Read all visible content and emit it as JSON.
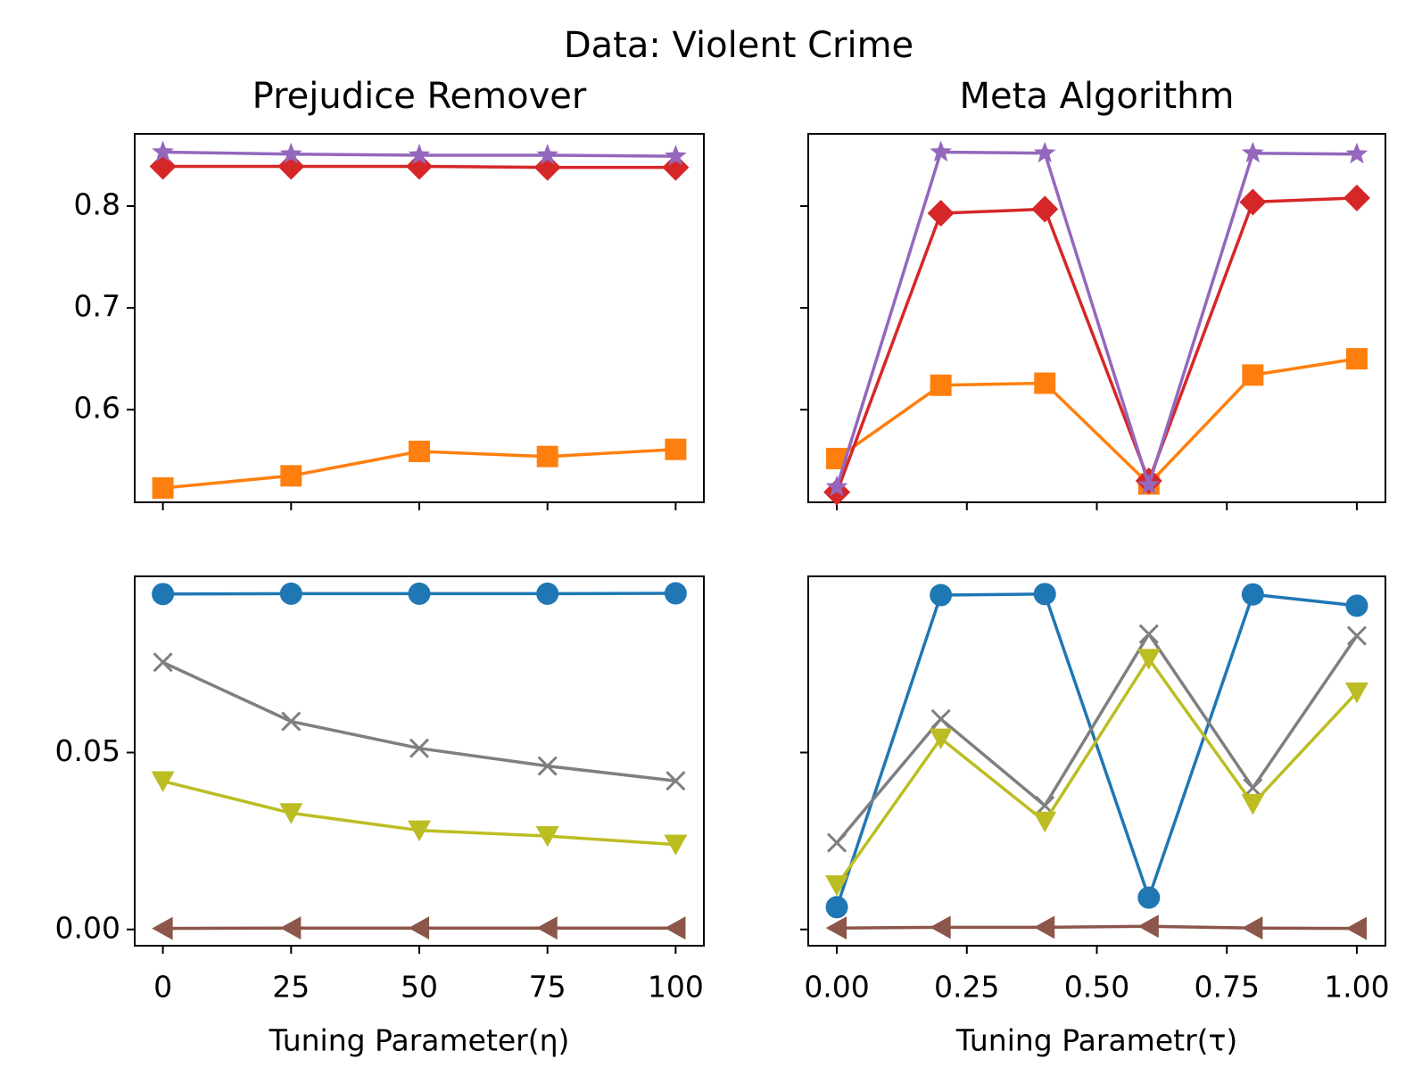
{
  "figure_title": "Data: Violent Crime",
  "chart_data": [
    {
      "id": "pr_top",
      "type": "line",
      "title": "Prejudice Remover",
      "xlabel": "",
      "ylabel": "",
      "x": [
        0,
        25,
        50,
        75,
        100
      ],
      "xlim": [
        -5.5,
        105.5
      ],
      "ylim": [
        0.509,
        0.871
      ],
      "xticks": [
        0,
        25,
        50,
        75,
        100
      ],
      "xticklabels": [],
      "yticks": [
        0.6,
        0.7,
        0.8
      ],
      "yticklabels": [
        "0.6",
        "0.7",
        "0.8"
      ],
      "grid": false,
      "series": [
        {
          "color": "#ff7f0e",
          "marker": "square",
          "values": [
            0.523,
            0.535,
            0.559,
            0.554,
            0.561
          ]
        },
        {
          "color": "#d62728",
          "marker": "diamond",
          "values": [
            0.839,
            0.839,
            0.839,
            0.838,
            0.838
          ]
        },
        {
          "color": "#9467bd",
          "marker": "star",
          "values": [
            0.853,
            0.851,
            0.85,
            0.85,
            0.849
          ]
        }
      ]
    },
    {
      "id": "meta_top",
      "type": "line",
      "title": "Meta Algorithm",
      "xlabel": "",
      "ylabel": "",
      "x": [
        0,
        0.2,
        0.4,
        0.6,
        0.8,
        1.0
      ],
      "xlim": [
        -0.055,
        1.055
      ],
      "ylim": [
        0.509,
        0.871
      ],
      "xticks": [
        0,
        0.25,
        0.5,
        0.75,
        1.0
      ],
      "xticklabels": [],
      "yticks": [
        0.6,
        0.7,
        0.8
      ],
      "yticklabels": [],
      "grid": false,
      "series": [
        {
          "color": "#ff7f0e",
          "marker": "square",
          "values": [
            0.552,
            0.624,
            0.626,
            0.527,
            0.634,
            0.65
          ]
        },
        {
          "color": "#d62728",
          "marker": "diamond",
          "values": [
            0.519,
            0.793,
            0.797,
            0.53,
            0.804,
            0.808
          ]
        },
        {
          "color": "#9467bd",
          "marker": "star",
          "values": [
            0.524,
            0.853,
            0.852,
            0.526,
            0.852,
            0.851
          ]
        }
      ]
    },
    {
      "id": "pr_bottom",
      "type": "line",
      "title": "",
      "xlabel": "Tuning Parameter(η)",
      "ylabel": "",
      "x": [
        0,
        25,
        50,
        75,
        100
      ],
      "xlim": [
        -5.5,
        105.5
      ],
      "ylim": [
        -0.0046,
        0.0998
      ],
      "xticks": [
        0,
        25,
        50,
        75,
        100
      ],
      "xticklabels": [
        "0",
        "25",
        "50",
        "75",
        "100"
      ],
      "yticks": [
        0.0,
        0.05
      ],
      "yticklabels": [
        "0.00",
        "0.05"
      ],
      "grid": false,
      "series": [
        {
          "color": "#1f77b4",
          "marker": "circle",
          "values": [
            0.0948,
            0.0949,
            0.0949,
            0.0949,
            0.095
          ]
        },
        {
          "color": "#7f7f7f",
          "marker": "x",
          "values": [
            0.0755,
            0.0588,
            0.0512,
            0.0462,
            0.042
          ]
        },
        {
          "color": "#bcbd22",
          "marker": "triangle-down",
          "values": [
            0.0419,
            0.0329,
            0.028,
            0.0264,
            0.024
          ]
        },
        {
          "color": "#8c564b",
          "marker": "triangle-left",
          "values": [
            0.0003,
            0.0004,
            0.0004,
            0.0004,
            0.0004
          ]
        }
      ]
    },
    {
      "id": "meta_bottom",
      "type": "line",
      "title": "",
      "xlabel": "Tuning Parametr(τ)",
      "ylabel": "",
      "x": [
        0,
        0.2,
        0.4,
        0.6,
        0.8,
        1.0
      ],
      "xlim": [
        -0.055,
        1.055
      ],
      "ylim": [
        -0.0046,
        0.0998
      ],
      "xticks": [
        0,
        0.25,
        0.5,
        0.75,
        1.0
      ],
      "xticklabels": [
        "0.00",
        "0.25",
        "0.50",
        "0.75",
        "1.00"
      ],
      "yticks": [
        0.0,
        0.05
      ],
      "yticklabels": [],
      "grid": false,
      "series": [
        {
          "color": "#1f77b4",
          "marker": "circle",
          "values": [
            0.0063,
            0.0945,
            0.0948,
            0.009,
            0.0947,
            0.0915
          ]
        },
        {
          "color": "#7f7f7f",
          "marker": "x",
          "values": [
            0.0245,
            0.0595,
            0.035,
            0.0835,
            0.04,
            0.083
          ]
        },
        {
          "color": "#bcbd22",
          "marker": "triangle-down",
          "values": [
            0.0125,
            0.054,
            0.0305,
            0.0765,
            0.0355,
            0.067
          ]
        },
        {
          "color": "#8c564b",
          "marker": "triangle-left",
          "values": [
            0.0004,
            0.0006,
            0.0006,
            0.0009,
            0.0004,
            0.0003
          ]
        }
      ]
    }
  ]
}
